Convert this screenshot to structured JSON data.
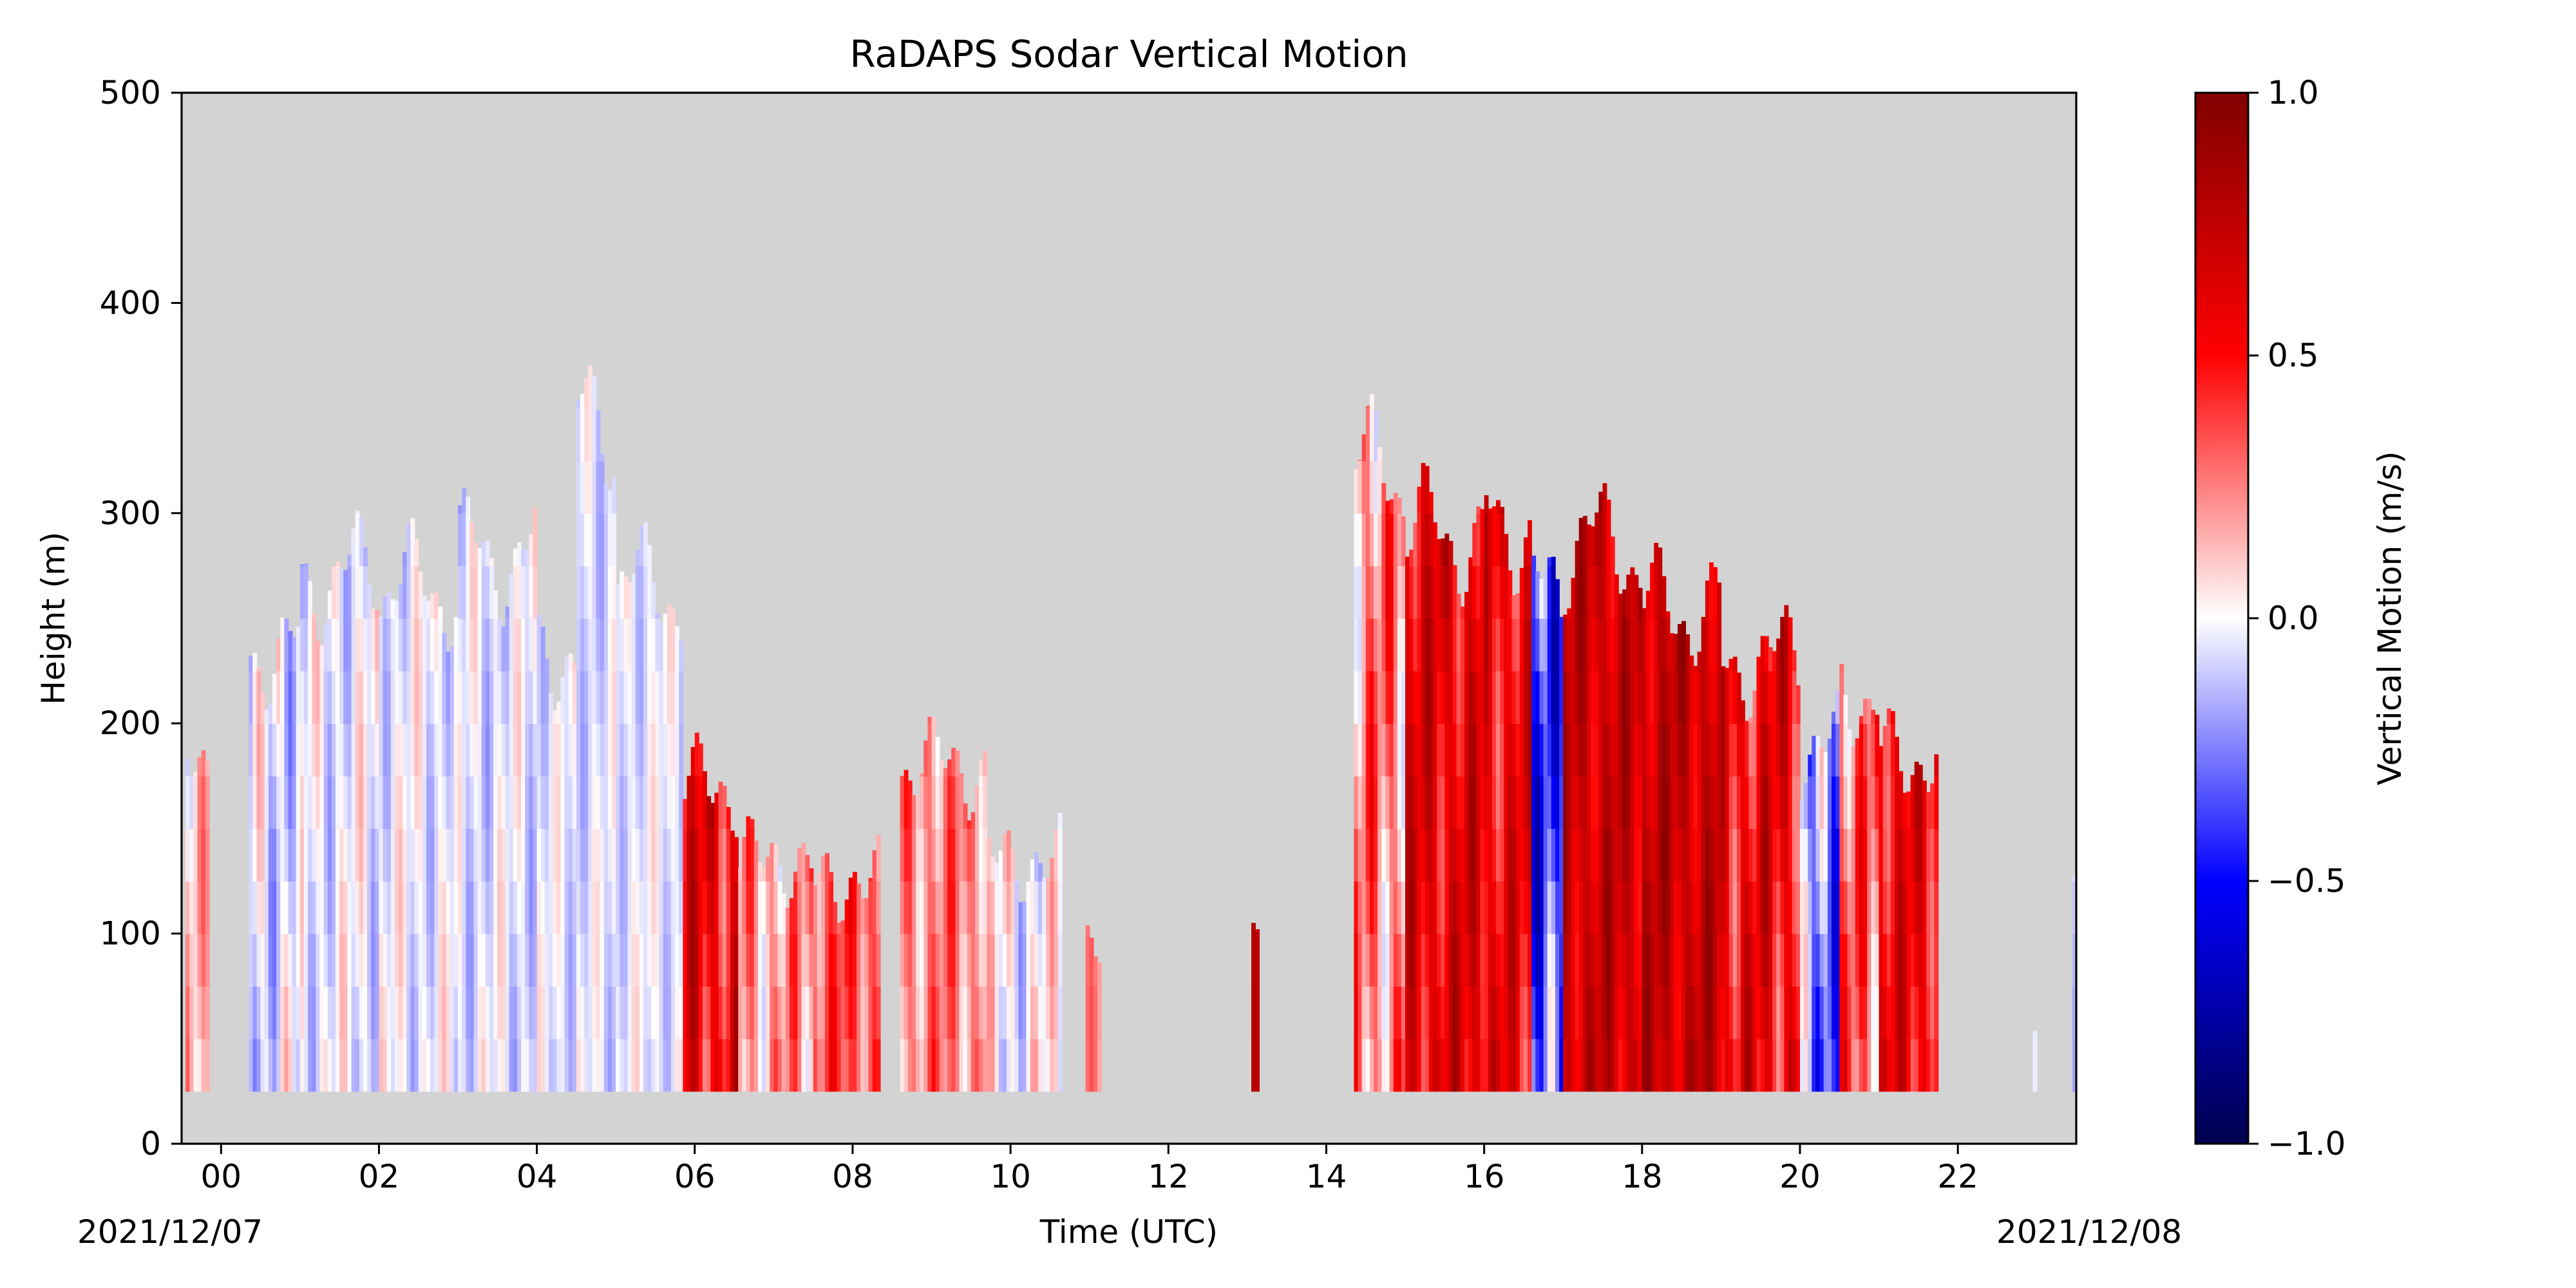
{
  "chart_data": {
    "type": "heatmap",
    "title": "RaDAPS Sodar Vertical Motion",
    "xlabel": "Time (UTC)",
    "ylabel": "Height (m)",
    "x_tick_labels": [
      "00",
      "02",
      "04",
      "06",
      "08",
      "10",
      "12",
      "14",
      "16",
      "18",
      "20",
      "22"
    ],
    "x_ticks_hours": [
      0,
      2,
      4,
      6,
      8,
      10,
      12,
      14,
      16,
      18,
      20,
      22
    ],
    "x_range_hours": [
      -0.5,
      23.5
    ],
    "date_labels": {
      "start": "2021/12/07",
      "end": "2021/12/08"
    },
    "y_ticks": [
      0,
      100,
      200,
      300,
      400,
      500
    ],
    "ylim": [
      0,
      500
    ],
    "colorbar": {
      "label": "Vertical Motion (m/s)",
      "ticks": [
        1.0,
        0.5,
        0.0,
        -0.5,
        -1.0
      ],
      "tick_labels": [
        "1.0",
        "0.5",
        "0.0",
        "−0.5",
        "−1.0"
      ],
      "range": [
        -1.0,
        1.0
      ],
      "colormap": "seismic"
    },
    "missing_color": "#d3d3d3",
    "profile_bottom_m": 25,
    "segments": [
      {
        "start": -0.45,
        "end": -0.15,
        "top": 190,
        "bias": 0.1,
        "amp": 0.25
      },
      {
        "start": 0.35,
        "end": 1.0,
        "top": 235,
        "bias": -0.05,
        "amp": 0.25
      },
      {
        "start": 1.0,
        "end": 2.0,
        "top": 270,
        "bias": -0.03,
        "amp": 0.2
      },
      {
        "start": 2.0,
        "end": 3.0,
        "top": 265,
        "bias": -0.03,
        "amp": 0.18
      },
      {
        "start": 3.0,
        "end": 4.0,
        "top": 280,
        "bias": -0.05,
        "amp": 0.18
      },
      {
        "start": 4.0,
        "end": 4.5,
        "top": 235,
        "bias": -0.05,
        "amp": 0.15
      },
      {
        "start": 4.5,
        "end": 5.0,
        "top": 340,
        "bias": -0.06,
        "amp": 0.15
      },
      {
        "start": 5.0,
        "end": 5.85,
        "top": 265,
        "bias": -0.04,
        "amp": 0.15
      },
      {
        "start": 5.85,
        "end": 6.55,
        "top": 170,
        "bias": 0.55,
        "amp": 0.35
      },
      {
        "start": 6.55,
        "end": 7.5,
        "top": 135,
        "bias": 0.2,
        "amp": 0.3
      },
      {
        "start": 7.5,
        "end": 8.35,
        "top": 125,
        "bias": 0.35,
        "amp": 0.25
      },
      {
        "start": 8.6,
        "end": 9.7,
        "top": 180,
        "bias": 0.25,
        "amp": 0.25
      },
      {
        "start": 9.7,
        "end": 10.65,
        "top": 135,
        "bias": 0.0,
        "amp": 0.25
      },
      {
        "start": 10.95,
        "end": 11.15,
        "top": 100,
        "bias": 0.2,
        "amp": 0.15
      },
      {
        "start": 13.05,
        "end": 13.15,
        "top": 110,
        "bias": 0.7,
        "amp": 0.1
      },
      {
        "start": 14.35,
        "end": 15.0,
        "top": 320,
        "bias": 0.25,
        "amp": 0.35
      },
      {
        "start": 15.0,
        "end": 16.0,
        "top": 290,
        "bias": 0.6,
        "amp": 0.3
      },
      {
        "start": 16.0,
        "end": 16.6,
        "top": 295,
        "bias": 0.55,
        "amp": 0.3
      },
      {
        "start": 16.6,
        "end": 17.0,
        "top": 260,
        "bias": -0.35,
        "amp": 0.45
      },
      {
        "start": 17.0,
        "end": 18.0,
        "top": 285,
        "bias": 0.7,
        "amp": 0.25
      },
      {
        "start": 18.0,
        "end": 19.0,
        "top": 255,
        "bias": 0.72,
        "amp": 0.25
      },
      {
        "start": 19.0,
        "end": 20.0,
        "top": 230,
        "bias": 0.55,
        "amp": 0.35
      },
      {
        "start": 20.0,
        "end": 20.5,
        "top": 190,
        "bias": -0.25,
        "amp": 0.4
      },
      {
        "start": 20.5,
        "end": 21.0,
        "top": 215,
        "bias": 0.3,
        "amp": 0.35
      },
      {
        "start": 21.0,
        "end": 21.75,
        "top": 185,
        "bias": 0.55,
        "amp": 0.3
      },
      {
        "start": 22.95,
        "end": 23.0,
        "top": 70,
        "bias": 0.0,
        "amp": 0.05
      },
      {
        "start": 23.45,
        "end": 23.5,
        "top": 110,
        "bias": -0.1,
        "amp": 0.1
      }
    ]
  }
}
